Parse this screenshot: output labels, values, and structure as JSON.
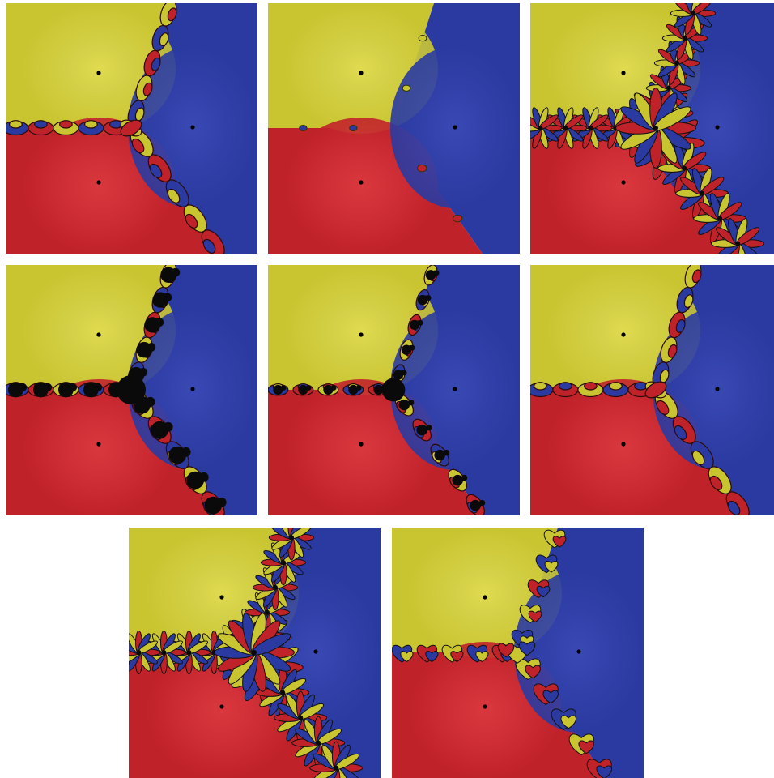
{
  "figure": {
    "colors": {
      "yellow_basin": "#c9c531",
      "yellow_light": "#d6d24a",
      "yellow_center": "#e2dd52",
      "red_basin": "#c0222a",
      "red_light": "#d4323a",
      "red_center": "#dc3a40",
      "blue_basin": "#2a3aa0",
      "blue_light": "#3544ae",
      "blue_center": "#3b4ab6",
      "julia_black": "#0a0a0a",
      "root_marker": "#000000"
    },
    "panels": [
      {
        "id": "p1",
        "style": "lobes",
        "lobe_scale": 1.0,
        "black_fill": 0.0,
        "flower_petals": 0
      },
      {
        "id": "p2",
        "style": "smooth",
        "lobe_scale": 0.5,
        "black_fill": 0.0,
        "flower_petals": 0
      },
      {
        "id": "p3",
        "style": "flowers",
        "lobe_scale": 1.0,
        "black_fill": 0.0,
        "flower_petals": 10
      },
      {
        "id": "p4",
        "style": "black-bulbs",
        "lobe_scale": 1.0,
        "black_fill": 0.75,
        "flower_petals": 0
      },
      {
        "id": "p5",
        "style": "black-bulbs",
        "lobe_scale": 0.8,
        "black_fill": 0.45,
        "flower_petals": 0
      },
      {
        "id": "p6",
        "style": "lobes",
        "lobe_scale": 1.0,
        "black_fill": 0.0,
        "flower_petals": 0
      },
      {
        "id": "p7",
        "style": "flowers",
        "lobe_scale": 1.0,
        "black_fill": 0.0,
        "flower_petals": 12
      },
      {
        "id": "p8",
        "style": "hearts",
        "lobe_scale": 1.0,
        "black_fill": 0.0,
        "flower_petals": 6
      }
    ]
  }
}
